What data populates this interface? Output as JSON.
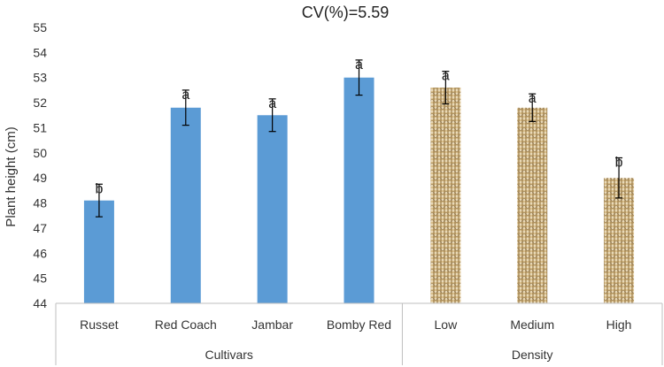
{
  "chart_data": {
    "type": "bar",
    "title": "CV(%)=5.59",
    "ylabel": "Plant height (cm)",
    "xlabel": "",
    "ylim": [
      44,
      55
    ],
    "yticks": [
      44,
      45,
      46,
      47,
      48,
      49,
      50,
      51,
      52,
      53,
      54,
      55
    ],
    "grid": false,
    "categories": [
      "Russet",
      "Red Coach",
      "Jambar",
      "Bomby Red",
      "Low",
      "Medium",
      "High"
    ],
    "values": [
      48.1,
      51.8,
      51.5,
      53.0,
      52.6,
      51.8,
      49.0
    ],
    "error": [
      0.65,
      0.7,
      0.65,
      0.7,
      0.65,
      0.55,
      0.8
    ],
    "significance": [
      "b",
      "a",
      "a",
      "a",
      "a",
      "a",
      "b"
    ],
    "groups": [
      {
        "name": "Cultivars",
        "start": 0,
        "end": 3,
        "fill": "#5b9bd5",
        "pattern": "solid"
      },
      {
        "name": "Density",
        "start": 4,
        "end": 6,
        "fill": "#c8a96e",
        "pattern": "woven"
      }
    ]
  }
}
